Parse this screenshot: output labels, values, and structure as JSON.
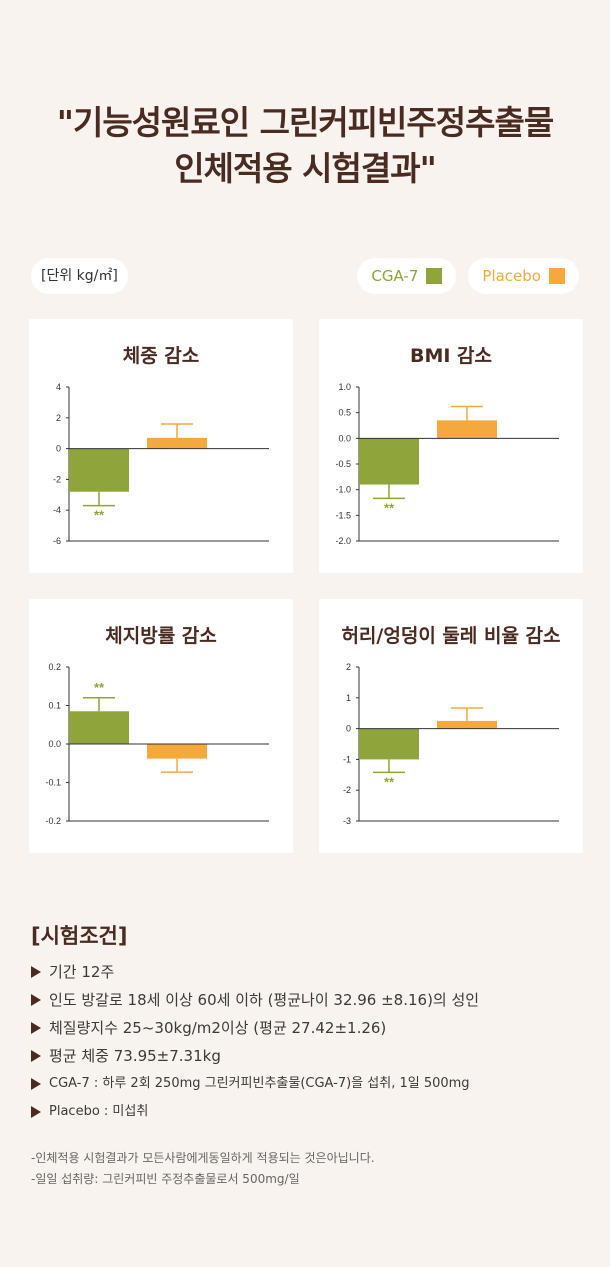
{
  "title": {
    "line1": "\"기능성원료인 그린커피빈주정추출물",
    "line2": "인체적용 시험결과\""
  },
  "unit_label": "[단위 kg/㎡]",
  "legend": [
    {
      "label": "CGA-7",
      "color": "#8fa43a"
    },
    {
      "label": "Placebo",
      "color": "#f5a93c"
    }
  ],
  "colors": {
    "cga7": "#8fa43a",
    "placebo": "#f5a93c",
    "axis": "#333333"
  },
  "chart_data": [
    {
      "type": "bar",
      "title": "체중 감소",
      "categories": [
        "CGA-7",
        "Placebo"
      ],
      "values": [
        -2.8,
        0.7
      ],
      "errors": [
        0.9,
        0.9
      ],
      "significance": [
        "**",
        ""
      ],
      "ylim": [
        -6,
        4
      ],
      "yticks": [
        4,
        2,
        0,
        -2,
        -4,
        -6
      ],
      "ytick_labels": [
        "4",
        "2",
        "0",
        "-2",
        "-4",
        "-6"
      ]
    },
    {
      "type": "bar",
      "title": "BMI 감소",
      "categories": [
        "CGA-7",
        "Placebo"
      ],
      "values": [
        -0.9,
        0.35
      ],
      "errors": [
        0.27,
        0.27
      ],
      "significance": [
        "**",
        ""
      ],
      "ylim": [
        -2.0,
        1.0
      ],
      "yticks": [
        1.0,
        0.5,
        0.0,
        -0.5,
        -1.0,
        -1.5,
        -2.0
      ],
      "ytick_labels": [
        "1.0",
        "0.5",
        "0.0",
        "-0.5",
        "-1.0",
        "-1.5",
        "-2.0"
      ]
    },
    {
      "type": "bar",
      "title": "체지방률 감소",
      "categories": [
        "CGA-7",
        "Placebo"
      ],
      "values": [
        0.085,
        -0.038
      ],
      "errors": [
        0.035,
        0.035
      ],
      "significance": [
        "**",
        ""
      ],
      "ylim": [
        -0.2,
        0.2
      ],
      "yticks": [
        0.2,
        0.1,
        0.0,
        -0.1,
        -0.2
      ],
      "ytick_labels": [
        "0.2",
        "0.1",
        "0.0",
        "-0.1",
        "-0.2"
      ]
    },
    {
      "type": "bar",
      "title": "허리/엉덩이 둘레 비율 감소",
      "categories": [
        "CGA-7",
        "Placebo"
      ],
      "values": [
        -1.0,
        0.25
      ],
      "errors": [
        0.42,
        0.42
      ],
      "significance": [
        "**",
        ""
      ],
      "ylim": [
        -3,
        2
      ],
      "yticks": [
        2,
        1,
        0,
        -1,
        -2,
        -3
      ],
      "ytick_labels": [
        "2",
        "1",
        "0",
        "-1",
        "-2",
        "-3"
      ]
    }
  ],
  "conditions": {
    "title": "[시험조건]",
    "items": [
      "기간 12주",
      "인도 방갈로 18세 이상 60세 이하 (평균나이 32.96 ±8.16)의 성인",
      "체질량지수 25~30kg/m2이상 (평균 27.42±1.26)",
      "평균 체중 73.95±7.31kg",
      "CGA-7 : 하루 2회 250mg 그린커피빈추출물(CGA-7)을 섭취, 1일 500mg",
      "Placebo :  미섭취"
    ]
  },
  "notes": [
    "-인체적용 시험결과가 모든사람에게동일하게 적용되는 것은아닙니다.",
    "-일일 섭취량: 그린커피빈 주정추출물로서 500mg/일"
  ]
}
